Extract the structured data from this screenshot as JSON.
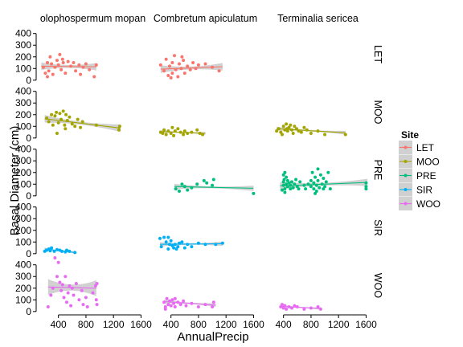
{
  "chart_data": {
    "type": "scatter",
    "xlabel": "AnnualPrecip",
    "ylabel": "Basal Diameter (cm)",
    "x_ticks": [
      400,
      800,
      1200,
      1600
    ],
    "y_ticks": [
      0,
      100,
      200,
      300,
      400
    ],
    "xlim": [
      100,
      1700
    ],
    "ylim": [
      -15,
      460
    ],
    "species": [
      "olophospermum mopan",
      "Combretum apiculatum",
      "Terminalia sericea"
    ],
    "sites": [
      "LET",
      "MOO",
      "PRE",
      "SIR",
      "WOO"
    ],
    "legend": {
      "title": "Site",
      "position": "right"
    },
    "colors": {
      "LET": "#F8766D",
      "MOO": "#A3A500",
      "PRE": "#00BF7D",
      "SIR": "#00B0F6",
      "WOO": "#E76BF3"
    },
    "panels": [
      {
        "site": "LET",
        "species": 0,
        "points": [
          [
            180,
            110
          ],
          [
            210,
            60
          ],
          [
            240,
            150
          ],
          [
            260,
            80
          ],
          [
            280,
            200
          ],
          [
            300,
            140
          ],
          [
            320,
            50
          ],
          [
            350,
            110
          ],
          [
            380,
            170
          ],
          [
            400,
            130
          ],
          [
            420,
            220
          ],
          [
            440,
            90
          ],
          [
            470,
            150
          ],
          [
            500,
            60
          ],
          [
            540,
            160
          ],
          [
            580,
            120
          ],
          [
            620,
            150
          ],
          [
            650,
            80
          ],
          [
            700,
            130
          ],
          [
            720,
            50
          ],
          [
            760,
            110
          ],
          [
            800,
            140
          ],
          [
            850,
            90
          ],
          [
            920,
            30
          ],
          [
            950,
            130
          ],
          [
            240,
            30
          ],
          [
            460,
            180
          ]
        ],
        "trend": [
          [
            150,
            120
          ],
          [
            950,
            115
          ]
        ]
      },
      {
        "site": "LET",
        "species": 1,
        "points": [
          [
            250,
            130
          ],
          [
            300,
            80
          ],
          [
            330,
            180
          ],
          [
            360,
            40
          ],
          [
            380,
            120
          ],
          [
            400,
            20
          ],
          [
            420,
            150
          ],
          [
            450,
            210
          ],
          [
            470,
            90
          ],
          [
            500,
            30
          ],
          [
            520,
            140
          ],
          [
            550,
            100
          ],
          [
            580,
            170
          ],
          [
            600,
            60
          ],
          [
            640,
            120
          ],
          [
            680,
            90
          ],
          [
            720,
            150
          ],
          [
            760,
            100
          ],
          [
            800,
            130
          ],
          [
            900,
            140
          ],
          [
            1000,
            110
          ],
          [
            1100,
            80
          ],
          [
            420,
            60
          ],
          [
            560,
            200
          ]
        ],
        "trend": [
          [
            250,
            95
          ],
          [
            1150,
            115
          ]
        ]
      },
      {
        "site": "MOO",
        "species": 0,
        "points": [
          [
            230,
            170
          ],
          [
            260,
            140
          ],
          [
            300,
            200
          ],
          [
            320,
            110
          ],
          [
            350,
            190
          ],
          [
            370,
            220
          ],
          [
            400,
            130
          ],
          [
            420,
            210
          ],
          [
            440,
            160
          ],
          [
            470,
            230
          ],
          [
            490,
            110
          ],
          [
            510,
            200
          ],
          [
            530,
            150
          ],
          [
            560,
            180
          ],
          [
            600,
            120
          ],
          [
            640,
            100
          ],
          [
            680,
            160
          ],
          [
            720,
            90
          ],
          [
            750,
            140
          ],
          [
            950,
            110
          ],
          [
            1280,
            70
          ],
          [
            1290,
            100
          ],
          [
            380,
            40
          ],
          [
            500,
            80
          ]
        ],
        "trend": [
          [
            200,
            165
          ],
          [
            1300,
            85
          ]
        ]
      },
      {
        "site": "MOO",
        "species": 1,
        "points": [
          [
            250,
            50
          ],
          [
            280,
            40
          ],
          [
            300,
            70
          ],
          [
            330,
            30
          ],
          [
            360,
            60
          ],
          [
            400,
            40
          ],
          [
            420,
            90
          ],
          [
            440,
            20
          ],
          [
            460,
            60
          ],
          [
            500,
            80
          ],
          [
            540,
            50
          ],
          [
            580,
            30
          ],
          [
            600,
            60
          ],
          [
            640,
            40
          ],
          [
            700,
            50
          ],
          [
            780,
            70
          ],
          [
            820,
            40
          ],
          [
            860,
            30
          ]
        ],
        "trend": [
          [
            250,
            55
          ],
          [
            900,
            40
          ]
        ]
      },
      {
        "site": "MOO",
        "species": 2,
        "points": [
          [
            300,
            60
          ],
          [
            330,
            80
          ],
          [
            360,
            50
          ],
          [
            400,
            100
          ],
          [
            420,
            70
          ],
          [
            440,
            120
          ],
          [
            460,
            60
          ],
          [
            480,
            90
          ],
          [
            500,
            110
          ],
          [
            520,
            70
          ],
          [
            540,
            40
          ],
          [
            560,
            100
          ],
          [
            590,
            80
          ],
          [
            620,
            60
          ],
          [
            660,
            50
          ],
          [
            700,
            90
          ],
          [
            740,
            70
          ],
          [
            800,
            40
          ],
          [
            900,
            60
          ],
          [
            1000,
            30
          ],
          [
            1300,
            30
          ],
          [
            380,
            30
          ],
          [
            450,
            80
          ]
        ],
        "trend": [
          [
            300,
            80
          ],
          [
            1300,
            45
          ]
        ]
      },
      {
        "site": "PRE",
        "species": 1,
        "points": [
          [
            470,
            60
          ],
          [
            520,
            40
          ],
          [
            600,
            80
          ],
          [
            700,
            70
          ],
          [
            780,
            100
          ],
          [
            880,
            130
          ],
          [
            920,
            110
          ],
          [
            1000,
            90
          ],
          [
            1020,
            140
          ],
          [
            1600,
            20
          ],
          [
            560,
            100
          ],
          [
            640,
            50
          ]
        ],
        "trend": [
          [
            450,
            80
          ],
          [
            1600,
            65
          ]
        ]
      },
      {
        "site": "PRE",
        "species": 2,
        "points": [
          [
            380,
            50
          ],
          [
            400,
            120
          ],
          [
            400,
            180
          ],
          [
            400,
            90
          ],
          [
            410,
            140
          ],
          [
            420,
            200
          ],
          [
            420,
            60
          ],
          [
            440,
            100
          ],
          [
            440,
            160
          ],
          [
            460,
            80
          ],
          [
            460,
            130
          ],
          [
            480,
            110
          ],
          [
            500,
            90
          ],
          [
            500,
            60
          ],
          [
            520,
            120
          ],
          [
            540,
            70
          ],
          [
            560,
            100
          ],
          [
            580,
            140
          ],
          [
            600,
            80
          ],
          [
            620,
            60
          ],
          [
            640,
            120
          ],
          [
            700,
            90
          ],
          [
            720,
            60
          ],
          [
            760,
            100
          ],
          [
            800,
            130
          ],
          [
            800,
            80
          ],
          [
            820,
            200
          ],
          [
            840,
            110
          ],
          [
            840,
            60
          ],
          [
            860,
            160
          ],
          [
            880,
            90
          ],
          [
            880,
            40
          ],
          [
            900,
            230
          ],
          [
            900,
            130
          ],
          [
            920,
            70
          ],
          [
            940,
            180
          ],
          [
            960,
            100
          ],
          [
            980,
            60
          ],
          [
            980,
            150
          ],
          [
            1000,
            80
          ],
          [
            1020,
            120
          ],
          [
            1050,
            200
          ],
          [
            1080,
            60
          ],
          [
            1600,
            110
          ],
          [
            1600,
            60
          ],
          [
            1600,
            80
          ],
          [
            420,
            30
          ],
          [
            860,
            20
          ]
        ],
        "trend": [
          [
            350,
            85
          ],
          [
            1620,
            115
          ]
        ]
      },
      {
        "site": "SIR",
        "species": 0,
        "points": [
          [
            200,
            20
          ],
          [
            230,
            30
          ],
          [
            260,
            40
          ],
          [
            280,
            25
          ],
          [
            300,
            50
          ],
          [
            340,
            20
          ],
          [
            380,
            35
          ],
          [
            420,
            30
          ],
          [
            450,
            20
          ],
          [
            500,
            15
          ],
          [
            520,
            30
          ],
          [
            560,
            20
          ],
          [
            640,
            10
          ]
        ],
        "trend": [
          [
            200,
            40
          ],
          [
            650,
            10
          ]
        ]
      },
      {
        "site": "SIR",
        "species": 1,
        "points": [
          [
            240,
            130
          ],
          [
            260,
            60
          ],
          [
            300,
            140
          ],
          [
            330,
            100
          ],
          [
            360,
            40
          ],
          [
            380,
            80
          ],
          [
            400,
            110
          ],
          [
            420,
            70
          ],
          [
            440,
            50
          ],
          [
            460,
            80
          ],
          [
            500,
            60
          ],
          [
            520,
            90
          ],
          [
            560,
            100
          ],
          [
            600,
            50
          ],
          [
            640,
            80
          ],
          [
            700,
            60
          ],
          [
            800,
            90
          ],
          [
            900,
            80
          ],
          [
            1050,
            80
          ],
          [
            1150,
            90
          ],
          [
            360,
            140
          ],
          [
            480,
            40
          ]
        ],
        "trend": [
          [
            240,
            80
          ],
          [
            1150,
            85
          ]
        ]
      },
      {
        "site": "WOO",
        "species": 0,
        "points": [
          [
            250,
            40
          ],
          [
            290,
            140
          ],
          [
            320,
            200
          ],
          [
            350,
            460
          ],
          [
            380,
            300
          ],
          [
            400,
            420
          ],
          [
            420,
            250
          ],
          [
            440,
            180
          ],
          [
            460,
            230
          ],
          [
            480,
            120
          ],
          [
            500,
            300
          ],
          [
            520,
            80
          ],
          [
            540,
            160
          ],
          [
            560,
            220
          ],
          [
            580,
            50
          ],
          [
            600,
            200
          ],
          [
            620,
            140
          ],
          [
            660,
            240
          ],
          [
            700,
            100
          ],
          [
            740,
            180
          ],
          [
            760,
            60
          ],
          [
            800,
            120
          ],
          [
            820,
            40
          ],
          [
            900,
            160
          ],
          [
            940,
            220
          ],
          [
            950,
            100
          ],
          [
            960,
            60
          ],
          [
            960,
            240
          ]
        ],
        "trend": [
          [
            250,
            210
          ],
          [
            950,
            200
          ]
        ]
      },
      {
        "site": "WOO",
        "species": 1,
        "points": [
          [
            300,
            80
          ],
          [
            320,
            40
          ],
          [
            340,
            110
          ],
          [
            360,
            60
          ],
          [
            380,
            90
          ],
          [
            400,
            50
          ],
          [
            420,
            100
          ],
          [
            440,
            70
          ],
          [
            460,
            40
          ],
          [
            500,
            80
          ],
          [
            540,
            60
          ],
          [
            580,
            90
          ],
          [
            620,
            50
          ],
          [
            700,
            70
          ],
          [
            800,
            40
          ],
          [
            900,
            60
          ],
          [
            1000,
            40
          ],
          [
            1020,
            80
          ],
          [
            320,
            20
          ],
          [
            460,
            110
          ]
        ],
        "trend": [
          [
            300,
            85
          ],
          [
            1050,
            55
          ]
        ]
      },
      {
        "site": "WOO",
        "species": 2,
        "points": [
          [
            360,
            40
          ],
          [
            380,
            60
          ],
          [
            400,
            30
          ],
          [
            420,
            50
          ],
          [
            440,
            20
          ],
          [
            480,
            40
          ],
          [
            520,
            30
          ],
          [
            560,
            50
          ],
          [
            600,
            40
          ],
          [
            700,
            20
          ],
          [
            800,
            30
          ],
          [
            900,
            40
          ],
          [
            940,
            20
          ]
        ],
        "trend": [
          [
            360,
            45
          ],
          [
            950,
            25
          ]
        ]
      }
    ]
  }
}
